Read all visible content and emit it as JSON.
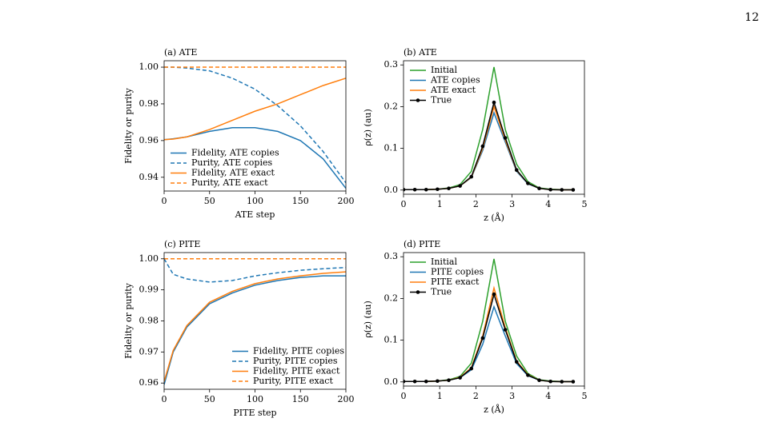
{
  "page_number": "12",
  "chart_data": [
    {
      "type": "line",
      "title": "(a) ATE",
      "xlabel": "ATE step",
      "ylabel": "Fidelity or purity",
      "xlim": [
        0,
        200
      ],
      "xticks": [
        0,
        50,
        100,
        150,
        200
      ],
      "ylim": [
        0.9325,
        1.0035
      ],
      "yticks": [
        0.94,
        0.96,
        0.98,
        {
          "value": 1,
          "label": "1.00"
        }
      ],
      "legend": "lower left",
      "x": [
        0,
        10,
        25,
        50,
        75,
        100,
        125,
        150,
        175,
        200
      ],
      "series": [
        {
          "name": "Fidelity, ATE copies",
          "color": "#1f77b4",
          "linestyle": "solid",
          "values": [
            0.9605,
            0.961,
            0.962,
            0.965,
            0.967,
            0.967,
            0.965,
            0.96,
            0.95,
            0.934
          ]
        },
        {
          "name": "Purity, ATE copies",
          "color": "#1f77b4",
          "linestyle": "dashed",
          "values": [
            1,
            1,
            0.9995,
            0.998,
            0.994,
            0.988,
            0.979,
            0.968,
            0.954,
            0.937
          ]
        },
        {
          "name": "Fidelity, ATE exact",
          "color": "#ff7f0e",
          "linestyle": "solid",
          "values": [
            0.9605,
            0.9608,
            0.962,
            0.966,
            0.971,
            0.976,
            0.98,
            0.985,
            0.99,
            0.994
          ]
        },
        {
          "name": "Purity, ATE exact",
          "color": "#ff7f0e",
          "linestyle": "dashed",
          "values": [
            1,
            1,
            1,
            1,
            1,
            1,
            1,
            1,
            1,
            1
          ]
        }
      ]
    },
    {
      "type": "line",
      "title": "(b) ATE",
      "xlabel": "z (Å)",
      "ylabel": "ρ(z) (au)",
      "xlim": [
        0,
        5
      ],
      "xticks": [
        0,
        1,
        2,
        3,
        4,
        5
      ],
      "ylim": [
        -0.01,
        0.31
      ],
      "yticks": [
        {
          "value": 0,
          "label": "0.0"
        },
        0.1,
        0.2,
        0.3
      ],
      "legend": "upper left",
      "x": [
        0,
        0.3125,
        0.625,
        0.9375,
        1.25,
        1.5625,
        1.875,
        2.1875,
        2.5,
        2.8125,
        3.125,
        3.4375,
        3.75,
        4.0625,
        4.375,
        4.6875
      ],
      "series": [
        {
          "name": "Initial",
          "color": "#2ca02c",
          "linestyle": "solid",
          "values": [
            0.001,
            0.001,
            0.001,
            0.002,
            0.005,
            0.013,
            0.045,
            0.145,
            0.295,
            0.145,
            0.062,
            0.02,
            0.005,
            0.002,
            0.001,
            0.001
          ]
        },
        {
          "name": "ATE copies",
          "color": "#1f77b4",
          "linestyle": "solid",
          "values": [
            0.001,
            0.001,
            0.001,
            0.002,
            0.004,
            0.01,
            0.03,
            0.095,
            0.185,
            0.115,
            0.045,
            0.015,
            0.004,
            0.001,
            0.0005,
            0.0005
          ]
        },
        {
          "name": "ATE exact",
          "color": "#ff7f0e",
          "linestyle": "solid",
          "values": [
            0.001,
            0.001,
            0.001,
            0.002,
            0.004,
            0.01,
            0.031,
            0.1,
            0.2,
            0.12,
            0.047,
            0.016,
            0.004,
            0.001,
            0.0005,
            0.0005
          ]
        },
        {
          "name": "True",
          "color": "#000000",
          "linestyle": "solid",
          "marker": "o",
          "values": [
            0.001,
            0.001,
            0.001,
            0.002,
            0.004,
            0.01,
            0.032,
            0.105,
            0.21,
            0.125,
            0.048,
            0.016,
            0.004,
            0.001,
            0.0005,
            0.0005
          ]
        }
      ]
    },
    {
      "type": "line",
      "title": "(c) PITE",
      "xlabel": "PITE step",
      "ylabel": "Fidelity or purity",
      "xlim": [
        0,
        200
      ],
      "xticks": [
        0,
        50,
        100,
        150,
        200
      ],
      "ylim": [
        0.958,
        1.002
      ],
      "yticks": [
        0.96,
        0.97,
        0.98,
        0.99,
        {
          "value": 1,
          "label": "1.00"
        }
      ],
      "legend": "lower right",
      "x": [
        0,
        10,
        25,
        50,
        75,
        100,
        125,
        150,
        175,
        200
      ],
      "series": [
        {
          "name": "Fidelity, PITE copies",
          "color": "#1f77b4",
          "linestyle": "solid",
          "values": [
            0.9595,
            0.97,
            0.978,
            0.9855,
            0.989,
            0.9915,
            0.993,
            0.994,
            0.9945,
            0.9945
          ]
        },
        {
          "name": "Purity, PITE copies",
          "color": "#1f77b4",
          "linestyle": "dashed",
          "values": [
            1,
            0.995,
            0.9935,
            0.9925,
            0.993,
            0.9945,
            0.9955,
            0.9963,
            0.9968,
            0.9972
          ]
        },
        {
          "name": "Fidelity, PITE exact",
          "color": "#ff7f0e",
          "linestyle": "solid",
          "values": [
            0.9605,
            0.9705,
            0.9785,
            0.986,
            0.9895,
            0.992,
            0.9935,
            0.9945,
            0.9953,
            0.9958
          ]
        },
        {
          "name": "Purity, PITE exact",
          "color": "#ff7f0e",
          "linestyle": "dashed",
          "values": [
            1,
            1,
            1,
            1,
            1,
            1,
            1,
            1,
            1,
            1
          ]
        }
      ]
    },
    {
      "type": "line",
      "title": "(d) PITE",
      "xlabel": "z (Å)",
      "ylabel": "ρ(z) (au)",
      "xlim": [
        0,
        5
      ],
      "xticks": [
        0,
        1,
        2,
        3,
        4,
        5
      ],
      "ylim": [
        -0.01,
        0.31
      ],
      "yticks": [
        {
          "value": 0,
          "label": "0.0"
        },
        0.1,
        0.2,
        0.3
      ],
      "legend": "upper left",
      "x": [
        0,
        0.3125,
        0.625,
        0.9375,
        1.25,
        1.5625,
        1.875,
        2.1875,
        2.5,
        2.8125,
        3.125,
        3.4375,
        3.75,
        4.0625,
        4.375,
        4.6875
      ],
      "series": [
        {
          "name": "Initial",
          "color": "#2ca02c",
          "linestyle": "solid",
          "values": [
            0.001,
            0.001,
            0.001,
            0.002,
            0.005,
            0.013,
            0.045,
            0.145,
            0.295,
            0.145,
            0.062,
            0.02,
            0.005,
            0.002,
            0.001,
            0.001
          ]
        },
        {
          "name": "PITE copies",
          "color": "#1f77b4",
          "linestyle": "solid",
          "values": [
            0.001,
            0.001,
            0.001,
            0.002,
            0.004,
            0.01,
            0.029,
            0.09,
            0.18,
            0.11,
            0.044,
            0.015,
            0.004,
            0.001,
            0.0005,
            0.0005
          ]
        },
        {
          "name": "PITE exact",
          "color": "#ff7f0e",
          "linestyle": "solid",
          "values": [
            0.001,
            0.001,
            0.001,
            0.002,
            0.004,
            0.011,
            0.034,
            0.11,
            0.225,
            0.13,
            0.05,
            0.017,
            0.004,
            0.001,
            0.0005,
            0.0005
          ]
        },
        {
          "name": "True",
          "color": "#000000",
          "linestyle": "solid",
          "marker": "o",
          "values": [
            0.001,
            0.001,
            0.001,
            0.002,
            0.004,
            0.01,
            0.032,
            0.105,
            0.21,
            0.125,
            0.048,
            0.016,
            0.004,
            0.001,
            0.0005,
            0.0005
          ]
        }
      ]
    }
  ]
}
